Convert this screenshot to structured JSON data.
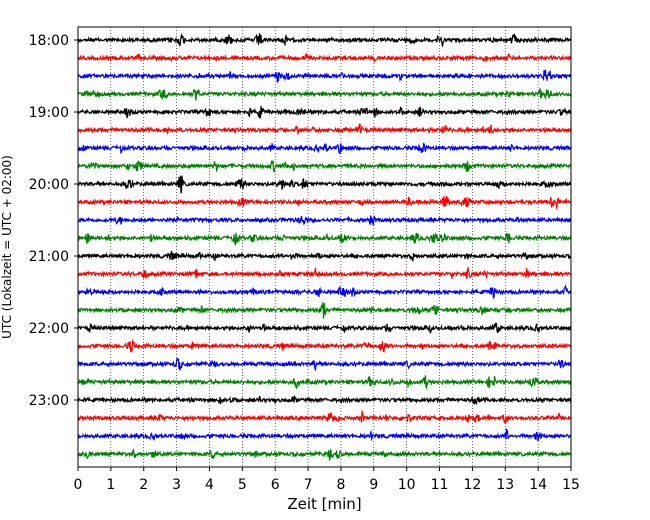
{
  "chart_data": {
    "type": "line",
    "subtype": "helicorder",
    "xlabel": "Zeit  [min]",
    "ylabel": "UTC (Lokalzeit = UTC + 02:00)",
    "xlim": [
      0,
      15
    ],
    "xticks": [
      0,
      1,
      2,
      3,
      4,
      5,
      6,
      7,
      8,
      9,
      10,
      11,
      12,
      13,
      14,
      15
    ],
    "y_tick_labels": [
      "18:00",
      "19:00",
      "20:00",
      "21:00",
      "22:00",
      "23:00"
    ],
    "trace_start_times": [
      "18:00",
      "18:15",
      "18:30",
      "18:45",
      "19:00",
      "19:15",
      "19:30",
      "19:45",
      "20:00",
      "20:15",
      "20:30",
      "20:45",
      "21:00",
      "21:15",
      "21:30",
      "21:45",
      "22:00",
      "22:15",
      "22:30",
      "22:45",
      "23:00",
      "23:15",
      "23:30",
      "23:45"
    ],
    "trace_colors": [
      "#000000",
      "#ff0000",
      "#0000ff",
      "#008000"
    ],
    "vertical_grid": "dotted, every minute"
  }
}
